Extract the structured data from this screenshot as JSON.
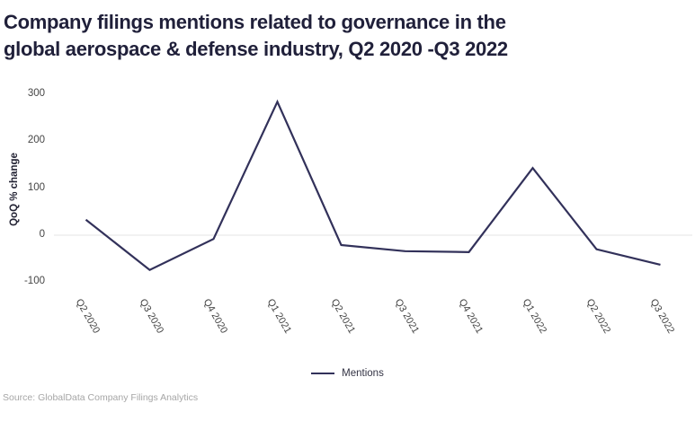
{
  "header": {
    "title_line1": "Company filings mentions related to governance in the",
    "title_line2": "global aerospace & defense industry, Q2 2020 -Q3 2022"
  },
  "chart_data": {
    "type": "line",
    "title": "Company filings mentions related to governance in the global aerospace & defense industry, Q2 2020 -Q3 2022",
    "categories": [
      "Q2 2020",
      "Q3 2020",
      "Q4 2020",
      "Q1 2021",
      "Q2 2021",
      "Q3 2021",
      "Q4 2021",
      "Q1 2022",
      "Q2 2022",
      "Q3 2022"
    ],
    "series": [
      {
        "name": "Mentions",
        "values": [
          33,
          -74,
          -8,
          284,
          -21,
          -34,
          -36,
          143,
          -30,
          -63
        ]
      }
    ],
    "xlabel": "",
    "ylabel": "QoQ % change",
    "ylim": [
      -100,
      300
    ],
    "yticks": [
      300,
      200,
      100,
      0,
      -100
    ],
    "grid": "zero-line-only",
    "legend_position": "bottom-center",
    "line_color": "#32315a",
    "zero_line_color": "#e4e4e4",
    "title_color": "#20203a",
    "axis_text_color": "#454545",
    "source_color": "#a6a6a6"
  },
  "footer": {
    "source": "Source: GlobalData Company Filings Analytics"
  }
}
